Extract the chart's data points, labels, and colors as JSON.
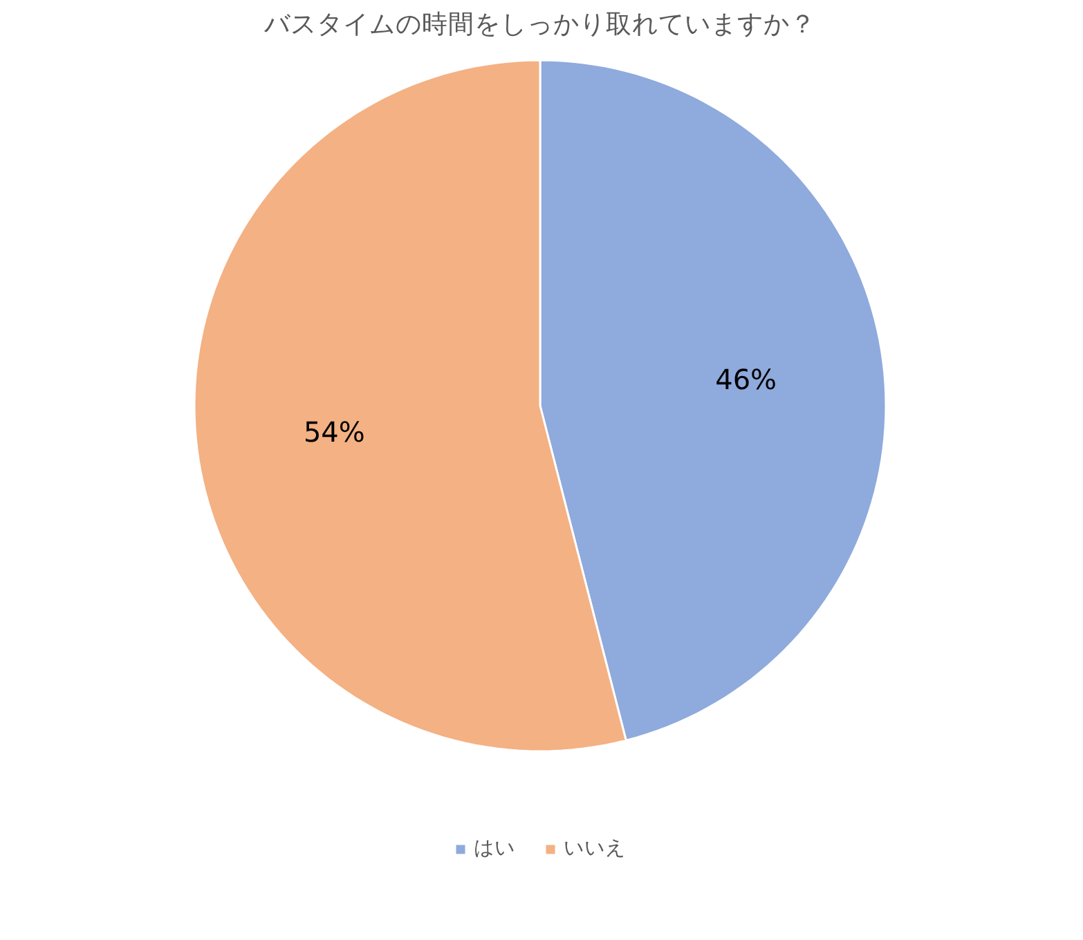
{
  "chart_data": {
    "type": "pie",
    "title": "バスタイムの時間をしっかり取れていますか？",
    "categories": [
      "はい",
      "いいえ"
    ],
    "values": [
      46,
      54
    ],
    "colors": [
      "#8faadc",
      "#f4b183"
    ],
    "value_labels": [
      "46%",
      "54%"
    ],
    "legend": "bottom"
  }
}
